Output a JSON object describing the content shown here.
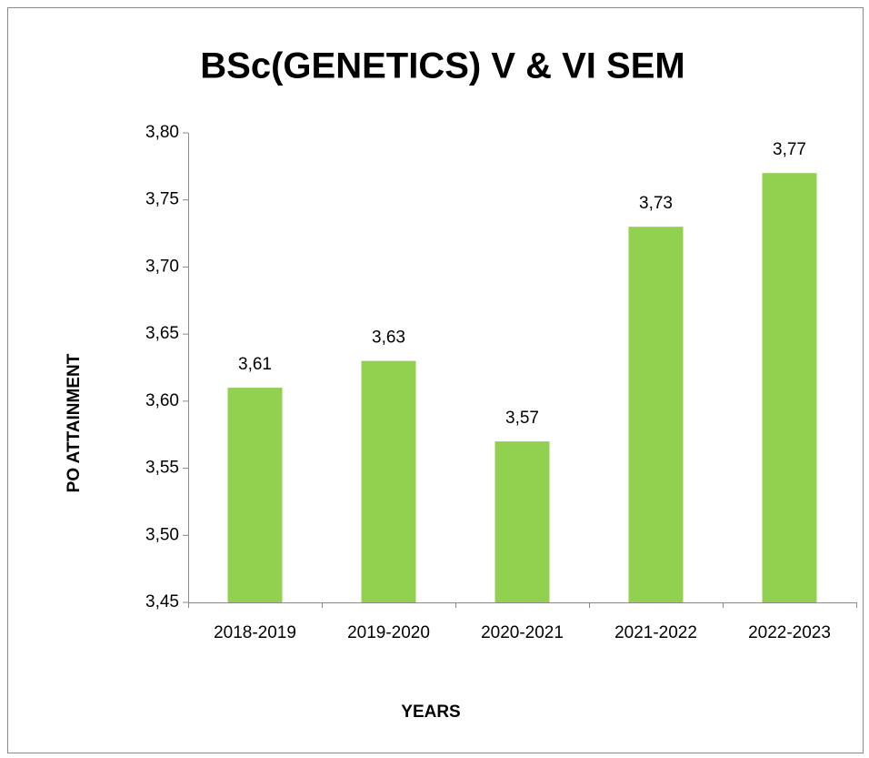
{
  "chart_data": {
    "type": "bar",
    "title": "BSc(GENETICS) V & VI SEM",
    "x_label": "YEARS",
    "y_label": "PO ATTAINMENT",
    "categories": [
      "2018-2019",
      "2019-2020",
      "2020-2021",
      "2021-2022",
      "2022-2023"
    ],
    "values": [
      3.61,
      3.63,
      3.57,
      3.73,
      3.77
    ],
    "value_labels": [
      "3,61",
      "3,63",
      "3,57",
      "3,73",
      "3,77"
    ],
    "color": "#92d050",
    "ylim": [
      3.45,
      3.8
    ],
    "yticks": [
      {
        "value": 3.45,
        "label": "3,45"
      },
      {
        "value": 3.5,
        "label": "3,50"
      },
      {
        "value": 3.55,
        "label": "3,55"
      },
      {
        "value": 3.6,
        "label": "3,60"
      },
      {
        "value": 3.65,
        "label": "3,65"
      },
      {
        "value": 3.7,
        "label": "3,70"
      },
      {
        "value": 3.75,
        "label": "3,75"
      },
      {
        "value": 3.8,
        "label": "3,80"
      }
    ],
    "grid": false
  }
}
